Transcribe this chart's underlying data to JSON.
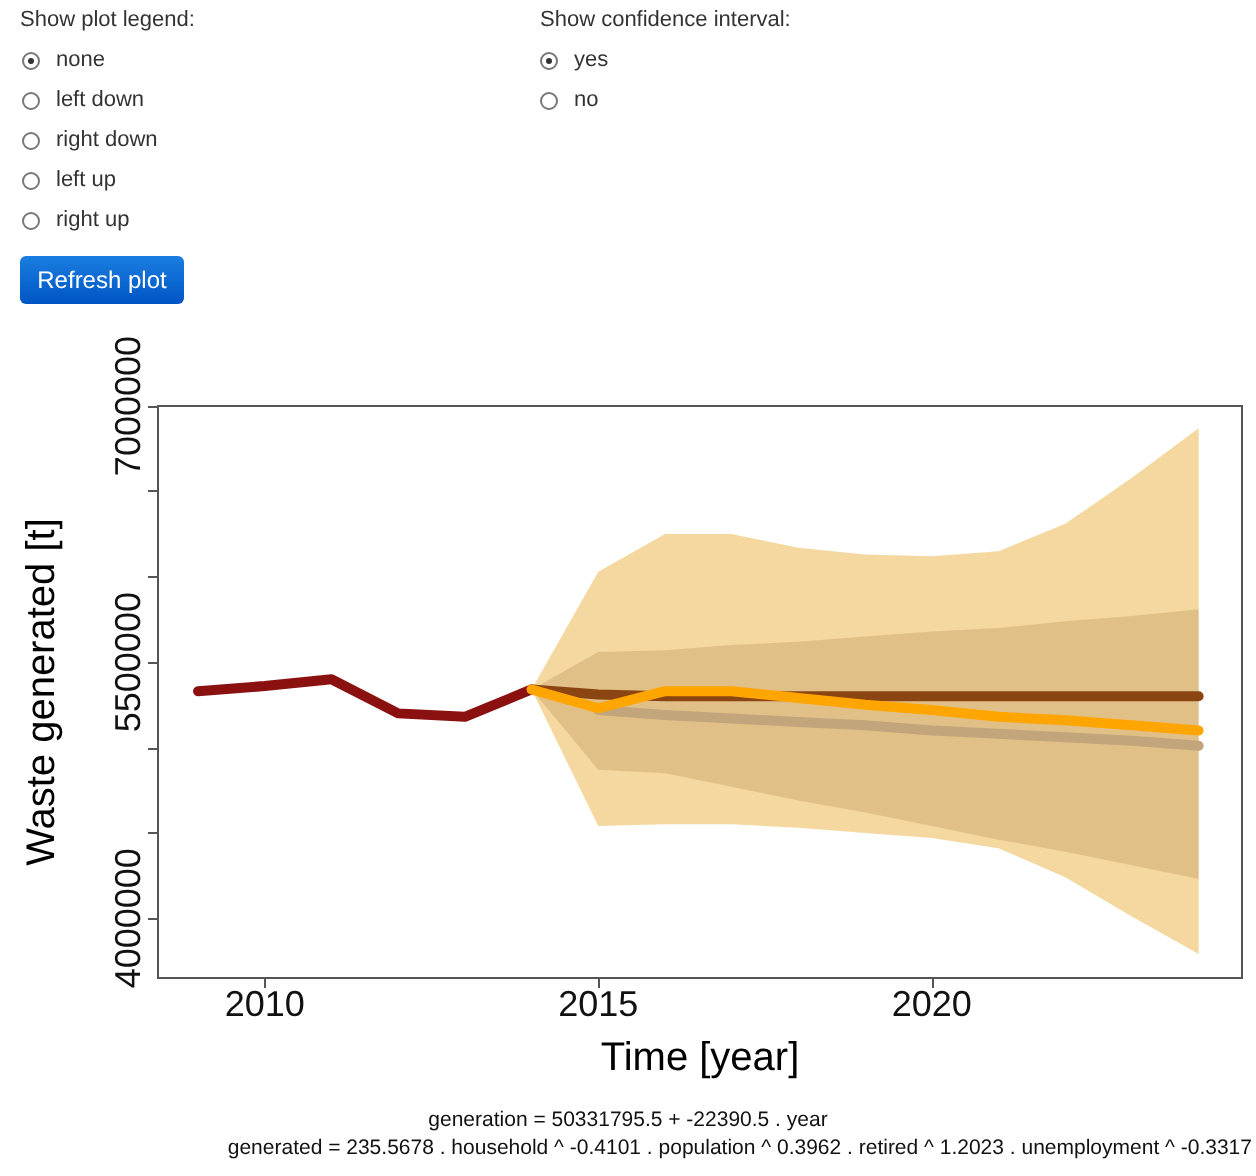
{
  "chart_data": {
    "type": "line",
    "xlabel": "Time [year]",
    "ylabel": "Waste generated [t]",
    "xlim": [
      2008.4,
      2024.65
    ],
    "xticks": [
      2010,
      2015,
      2020
    ],
    "ylim": [
      3650000,
      7000000
    ],
    "yticks": [
      4000000,
      {
        "value": 4500000,
        "label": null
      },
      {
        "value": 5000000,
        "label": null
      },
      5500000,
      {
        "value": 6000000,
        "label": null
      },
      {
        "value": 6500000,
        "label": null
      },
      7000000
    ],
    "grid": false,
    "marker": "none",
    "line_style": "solid",
    "series": [
      {
        "color": "#c2a57a",
        "x": [
          2014,
          2015,
          2016,
          2017,
          2018,
          2019,
          2020,
          2021,
          2022,
          2023,
          2024
        ],
        "values": [
          null,
          5220000,
          5190000,
          5170000,
          5150000,
          5130000,
          5100000,
          5080000,
          5060000,
          5040000,
          5010000
        ],
        "lower": [
          5340000,
          4870000,
          4850000,
          4770000,
          4690000,
          4620000,
          4540000,
          4460000,
          4390000,
          4310000,
          4230000
        ],
        "upper": [
          5340000,
          5560000,
          5570000,
          5600000,
          5620000,
          5650000,
          5680000,
          5700000,
          5740000,
          5770000,
          5810000
        ]
      },
      {
        "color": "#8b4513",
        "x": [
          2014,
          2015,
          2016,
          2017,
          2018,
          2019,
          2020,
          2021,
          2022,
          2023,
          2024
        ],
        "values": [
          5340000,
          5310000,
          5300000,
          5300000,
          5300000,
          5300000,
          5300000,
          5300000,
          5300000,
          5300000,
          5300000
        ]
      },
      {
        "color": "#8b1010",
        "x": [
          2009,
          2010,
          2011,
          2012,
          2013,
          2014
        ],
        "values": [
          5330000,
          5360000,
          5400000,
          5200000,
          5180000,
          5340000
        ]
      },
      {
        "color": "#ffa500",
        "x": [
          2014,
          2015,
          2016,
          2017,
          2018,
          2019,
          2020,
          2021,
          2022,
          2023,
          2024
        ],
        "values": [
          5340000,
          5230000,
          5330000,
          5330000,
          5290000,
          5250000,
          5220000,
          5180000,
          5160000,
          5130000,
          5100000
        ],
        "lower": [
          5340000,
          4540000,
          4550000,
          4550000,
          4530000,
          4500000,
          4470000,
          4410000,
          4240000,
          4010000,
          3790000
        ],
        "upper": [
          5340000,
          6030000,
          6250000,
          6250000,
          6170000,
          6130000,
          6120000,
          6150000,
          6310000,
          6580000,
          6870000
        ]
      }
    ],
    "annotations": [
      "Show plot legend:",
      "none",
      "left down",
      "right down",
      "left up",
      "right up",
      "Show confidence interval:",
      "yes",
      "no",
      "Refresh plot",
      "generation = 50331795.5 + -22390.5 . year",
      "generated = 235.5678 . household ^ -0.4101 . population ^ 0.3962 . retired ^ 1.2023 . unemployment ^ -0.3317"
    ]
  }
}
